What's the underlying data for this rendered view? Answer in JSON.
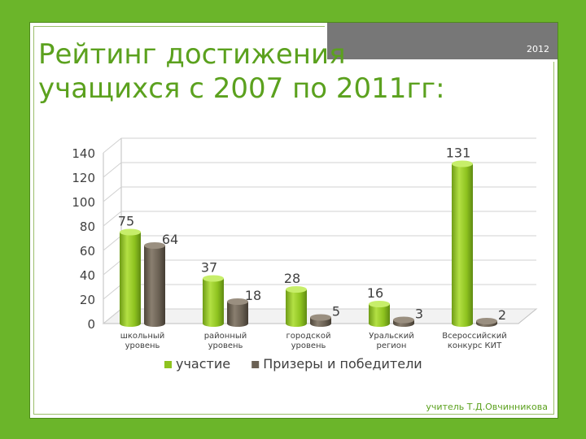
{
  "slide": {
    "year": "2012",
    "title_line1": "Рейтинг достижения",
    "title_line2": "учащихся с 2007 по 2011гг:",
    "footer": "учитель Т.Д.Овчинникова"
  },
  "colors": {
    "background": "#6bb52a",
    "title": "#5ba11e",
    "series_participation": "#8ec31f",
    "series_winners": "#6b6154",
    "tab": "#777777"
  },
  "chart_data": {
    "type": "bar",
    "style": "3d-cylinder",
    "categories": [
      [
        "школьный",
        "уровень"
      ],
      [
        "районный",
        "уровень"
      ],
      [
        "городской",
        "уровень"
      ],
      [
        "Уральский",
        "регион"
      ],
      [
        "Всероссийский",
        "конкурс КИТ"
      ]
    ],
    "series": [
      {
        "name": "участие",
        "color": "#8ec31f",
        "values": [
          75,
          37,
          28,
          16,
          131
        ]
      },
      {
        "name": "Призеры и победители",
        "color": "#6b6154",
        "values": [
          64,
          18,
          5,
          3,
          2
        ]
      }
    ],
    "ylim": [
      0,
      140
    ],
    "yticks": [
      0,
      20,
      40,
      60,
      80,
      100,
      120,
      140
    ],
    "grid": true,
    "legend_position": "bottom"
  }
}
